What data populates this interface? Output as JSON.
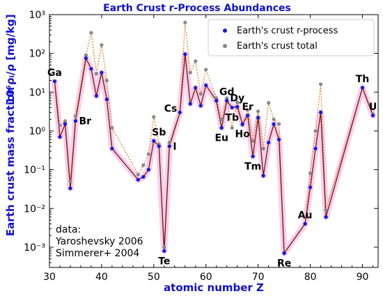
{
  "chart_data": {
    "type": "line",
    "title": "Earth Crust r-Process Abundances",
    "xlabel": "atomic number Z",
    "ylabel_line1": "Earth crust mass fraction",
    "ylabel_line2": "10⁶ρᵢ/ρ  [mg/kg]",
    "xlim": [
      30,
      93
    ],
    "ylim": [
      0.0003,
      1000
    ],
    "yscale": "log",
    "xticks": [
      30,
      40,
      50,
      60,
      70,
      80,
      90
    ],
    "yticks": [
      {
        "value": 0.001,
        "label": "10⁻³"
      },
      {
        "value": 0.01,
        "label": "10⁻²"
      },
      {
        "value": 0.1,
        "label": "10⁻¹"
      },
      {
        "value": 1,
        "label": "10⁰"
      },
      {
        "value": 10,
        "label": "10¹"
      },
      {
        "value": 100,
        "label": "10²"
      },
      {
        "value": 1000,
        "label": "10³"
      }
    ],
    "legend_position": "top-right",
    "series": [
      {
        "name": "Earth's crust r-process",
        "color": "#1515e6",
        "line_color": "#7a1010",
        "band_color": "#f4bfe6",
        "points": [
          [
            31,
            19
          ],
          [
            32,
            0.7
          ],
          [
            33,
            1.5
          ],
          [
            34,
            0.033
          ],
          [
            35,
            1.8
          ],
          [
            37,
            75
          ],
          [
            38,
            40
          ],
          [
            39,
            8
          ],
          [
            40,
            32
          ],
          [
            41,
            6.5
          ],
          [
            42,
            0.35
          ],
          [
            47,
            0.055
          ],
          [
            48,
            0.065
          ],
          [
            49,
            0.1
          ],
          [
            50,
            0.55
          ],
          [
            51,
            0.4
          ],
          [
            52,
            0.0008
          ],
          [
            53,
            0.4
          ],
          [
            55,
            3
          ],
          [
            56,
            95
          ],
          [
            57,
            5
          ],
          [
            58,
            13
          ],
          [
            59,
            4.5
          ],
          [
            60,
            15
          ],
          [
            62,
            6
          ],
          [
            63,
            1.2
          ],
          [
            64,
            6
          ],
          [
            65,
            4
          ],
          [
            66,
            4.2
          ],
          [
            67,
            1.5
          ],
          [
            68,
            2.5
          ],
          [
            69,
            0.22
          ],
          [
            70,
            2.2
          ],
          [
            71,
            0.07
          ],
          [
            72,
            0.5
          ],
          [
            73,
            1.5
          ],
          [
            74,
            0.6
          ],
          [
            75,
            0.0007
          ],
          [
            79,
            0.004
          ],
          [
            80,
            0.035
          ],
          [
            81,
            0.35
          ],
          [
            82,
            3
          ],
          [
            83,
            0.006
          ],
          [
            90,
            13
          ],
          [
            92,
            2.5
          ]
        ]
      },
      {
        "name": "Earth's crust total",
        "color": "#888888",
        "line_color": "#e07a1a",
        "points": [
          [
            31,
            19
          ],
          [
            32,
            1.4
          ],
          [
            33,
            1.8
          ],
          [
            34,
            0.05
          ],
          [
            35,
            2.4
          ],
          [
            37,
            90
          ],
          [
            38,
            340
          ],
          [
            39,
            30
          ],
          [
            40,
            165
          ],
          [
            41,
            20
          ],
          [
            42,
            1.2
          ],
          [
            47,
            0.075
          ],
          [
            48,
            0.13
          ],
          [
            49,
            0.25
          ],
          [
            50,
            2.3
          ],
          [
            51,
            0.45
          ],
          [
            52,
            0.001
          ],
          [
            53,
            0.5
          ],
          [
            55,
            3
          ],
          [
            56,
            630
          ],
          [
            57,
            32
          ],
          [
            58,
            63
          ],
          [
            59,
            9
          ],
          [
            60,
            38
          ],
          [
            62,
            7
          ],
          [
            63,
            2
          ],
          [
            64,
            7
          ],
          [
            65,
            1.2
          ],
          [
            66,
            5.5
          ],
          [
            67,
            1.4
          ],
          [
            68,
            3.5
          ],
          [
            69,
            0.55
          ],
          [
            70,
            3.2
          ],
          [
            71,
            0.35
          ],
          [
            72,
            5.3
          ],
          [
            73,
            2
          ],
          [
            74,
            1.5
          ],
          [
            75,
            0.0007
          ],
          [
            79,
            0.004
          ],
          [
            80,
            0.08
          ],
          [
            81,
            1
          ],
          [
            82,
            16
          ],
          [
            83,
            0.009
          ],
          [
            90,
            13
          ],
          [
            92,
            2.7
          ]
        ]
      }
    ],
    "element_labels": [
      {
        "text": "Ga",
        "z": 31,
        "y": 19,
        "pos": "above"
      },
      {
        "text": "Br",
        "z": 35,
        "y": 1.8,
        "pos": "right"
      },
      {
        "text": "Sb",
        "z": 51,
        "y": 0.55,
        "pos": "above"
      },
      {
        "text": "Te",
        "z": 52,
        "y": 0.0008,
        "pos": "below"
      },
      {
        "text": "I",
        "z": 53,
        "y": 0.4,
        "pos": "right"
      },
      {
        "text": "Cs",
        "z": 55,
        "y": 3,
        "pos": "left"
      },
      {
        "text": "Gd",
        "z": 64,
        "y": 6,
        "pos": "above"
      },
      {
        "text": "Dy",
        "z": 66,
        "y": 4.2,
        "pos": "above"
      },
      {
        "text": "Tb",
        "z": 65,
        "y": 4,
        "pos": "below"
      },
      {
        "text": "Er",
        "z": 68,
        "y": 2.5,
        "pos": "above"
      },
      {
        "text": "Eu",
        "z": 63,
        "y": 1.2,
        "pos": "below"
      },
      {
        "text": "Ho",
        "z": 67,
        "y": 1.5,
        "pos": "below"
      },
      {
        "text": "Tm",
        "z": 69,
        "y": 0.22,
        "pos": "below"
      },
      {
        "text": "Re",
        "z": 75,
        "y": 0.0007,
        "pos": "below"
      },
      {
        "text": "Au",
        "z": 79,
        "y": 0.004,
        "pos": "above"
      },
      {
        "text": "Th",
        "z": 90,
        "y": 13,
        "pos": "above"
      },
      {
        "text": "U",
        "z": 92,
        "y": 2.5,
        "pos": "above"
      }
    ],
    "annotation_lines": [
      "data:",
      "Yaroshevsky 2006",
      "Simmerer+ 2004"
    ]
  }
}
